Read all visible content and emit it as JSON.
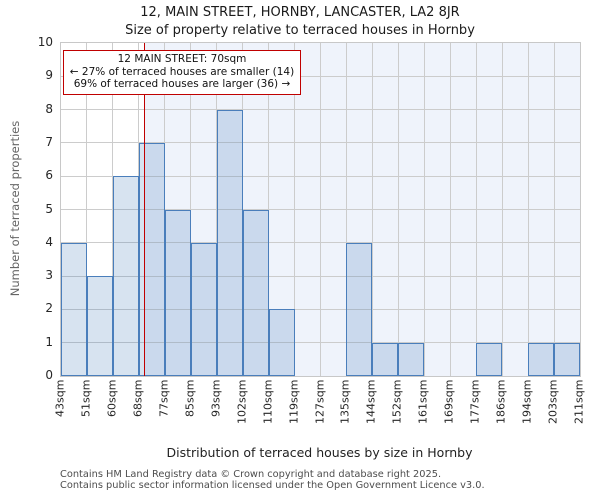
{
  "page": {
    "title": "12, MAIN STREET, HORNBY, LANCASTER, LA2 8JR",
    "subtitle": "Size of property relative to terraced houses in Hornby"
  },
  "annotation": {
    "line1": "12 MAIN STREET: 70sqm",
    "line2": "← 27% of terraced houses are smaller (14)",
    "line3": "69% of terraced houses are larger (36) →"
  },
  "footer": {
    "line1": "Contains HM Land Registry data © Crown copyright and database right 2025.",
    "line2": "Contains public sector information licensed under the Open Government Licence v3.0."
  },
  "chart_data": {
    "type": "bar",
    "title": "12, MAIN STREET, HORNBY, LANCASTER, LA2 8JR",
    "subtitle": "Size of property relative to terraced houses in Hornby",
    "xlabel": "Distribution of terraced houses by size in Hornby",
    "ylabel": "Number of terraced properties",
    "bin_edge_labels": [
      "43sqm",
      "51sqm",
      "60sqm",
      "68sqm",
      "77sqm",
      "85sqm",
      "93sqm",
      "102sqm",
      "110sqm",
      "119sqm",
      "127sqm",
      "135sqm",
      "144sqm",
      "152sqm",
      "161sqm",
      "169sqm",
      "177sqm",
      "186sqm",
      "194sqm",
      "203sqm",
      "211sqm"
    ],
    "bin_edges_numeric": [
      43,
      51,
      60,
      68,
      77,
      85,
      93,
      102,
      110,
      119,
      127,
      135,
      144,
      152,
      161,
      169,
      177,
      186,
      194,
      203,
      211
    ],
    "values": [
      4,
      3,
      6,
      7,
      5,
      4,
      8,
      5,
      2,
      0,
      0,
      4,
      1,
      1,
      0,
      0,
      1,
      0,
      1,
      1
    ],
    "ylim": [
      0,
      10
    ],
    "yticks": [
      0,
      1,
      2,
      3,
      4,
      5,
      6,
      7,
      8,
      9,
      10
    ],
    "grid": true,
    "legend": "none",
    "marker_value_sqm": 70,
    "marker_label": "12 MAIN STREET: 70sqm",
    "smaller_pct": 27,
    "smaller_count": 14,
    "larger_pct": 69,
    "larger_count": 36,
    "colors": {
      "bar_fill": "rgba(74,126,187,0.22)",
      "bar_stroke": "#4a7ebb",
      "marker_line": "#c00000",
      "annotation_border": "#c00000",
      "grid": "#cccccc",
      "plot_border": "#c8c8c8",
      "shaded_region": "#eff3fb"
    }
  }
}
